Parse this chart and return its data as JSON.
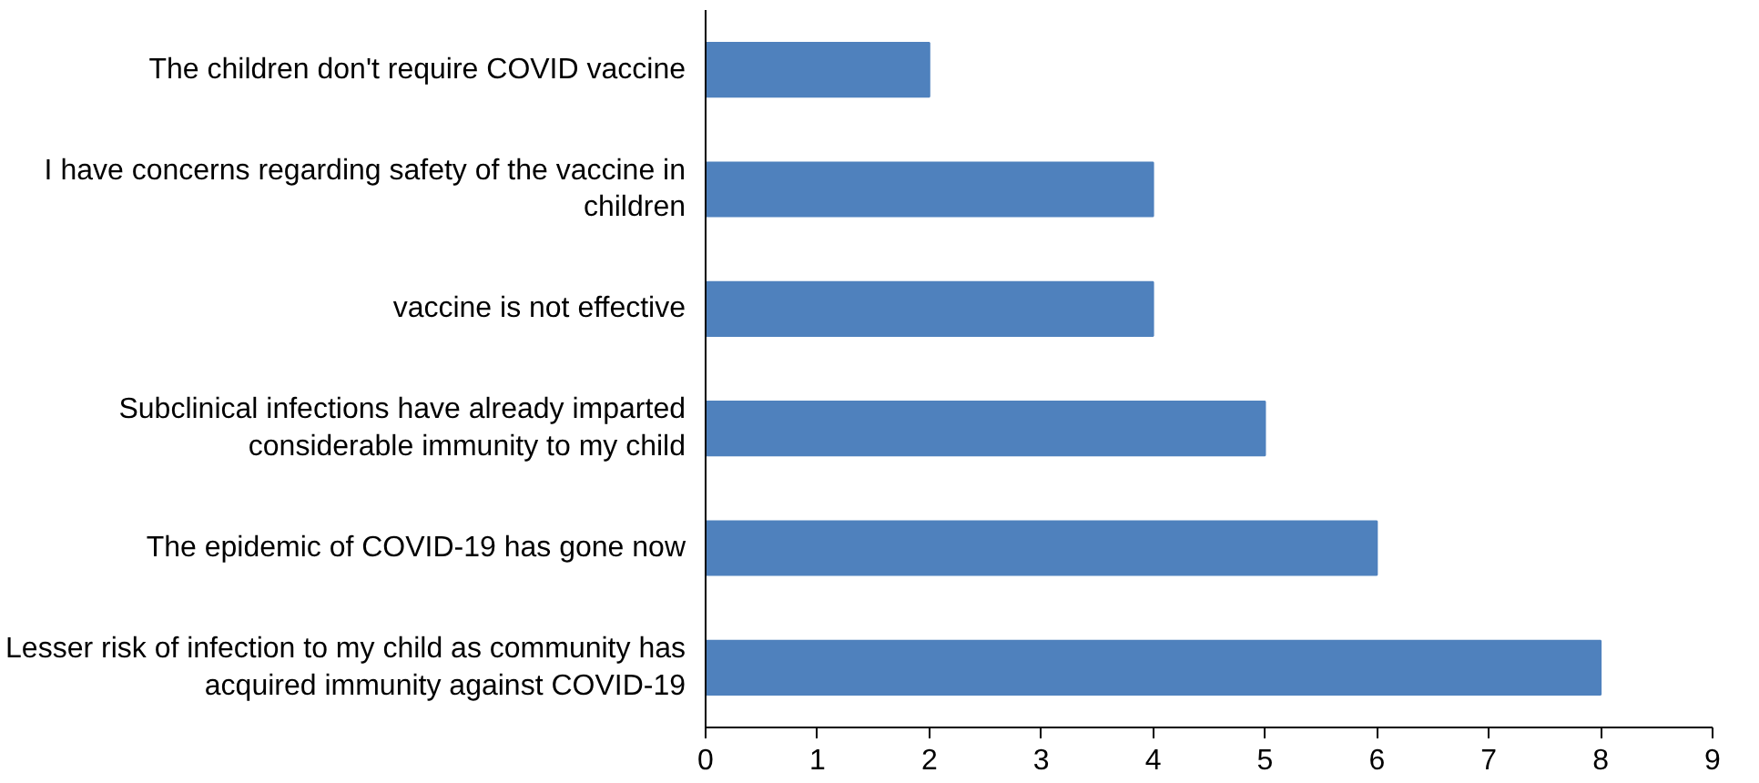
{
  "chart_data": {
    "type": "bar",
    "orientation": "horizontal",
    "categories": [
      "The children don't require COVID vaccine",
      "I have concerns regarding safety of the vaccine in children",
      "vaccine is not effective",
      "Subclinical infections have already imparted considerable immunity to my child",
      "The epidemic of COVID-19 has gone now",
      "Lesser risk of infection to my child as community has acquired immunity against COVID-19"
    ],
    "values": [
      2,
      4,
      4,
      5,
      6,
      8
    ],
    "color": "#4f81bd",
    "xlim": [
      0,
      9
    ],
    "xticks": [
      0,
      1,
      2,
      3,
      4,
      5,
      6,
      7,
      8,
      9
    ],
    "grid": false
  }
}
